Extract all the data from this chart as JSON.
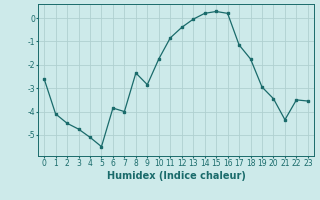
{
  "x": [
    0,
    1,
    2,
    3,
    4,
    5,
    6,
    7,
    8,
    9,
    10,
    11,
    12,
    13,
    14,
    15,
    16,
    17,
    18,
    19,
    20,
    21,
    22,
    23
  ],
  "y": [
    -2.6,
    -4.1,
    -4.5,
    -4.75,
    -5.1,
    -5.5,
    -3.85,
    -4.0,
    -2.35,
    -2.85,
    -1.75,
    -0.85,
    -0.4,
    -0.05,
    0.2,
    0.28,
    0.2,
    -1.15,
    -1.75,
    -2.95,
    -3.45,
    -4.35,
    -3.5,
    -3.55
  ],
  "line_color": "#1a6b6b",
  "marker": "s",
  "marker_size": 2.0,
  "bg_color": "#cdeaea",
  "grid_color": "#b0d0d0",
  "xlabel": "Humidex (Indice chaleur)",
  "xlim": [
    -0.5,
    23.5
  ],
  "ylim": [
    -5.9,
    0.6
  ],
  "yticks": [
    0,
    -1,
    -2,
    -3,
    -4,
    -5
  ],
  "xticks": [
    0,
    1,
    2,
    3,
    4,
    5,
    6,
    7,
    8,
    9,
    10,
    11,
    12,
    13,
    14,
    15,
    16,
    17,
    18,
    19,
    20,
    21,
    22,
    23
  ],
  "tick_label_size": 5.5,
  "xlabel_size": 7.0,
  "label_color": "#1a6b6b",
  "spine_color": "#1a6b6b"
}
